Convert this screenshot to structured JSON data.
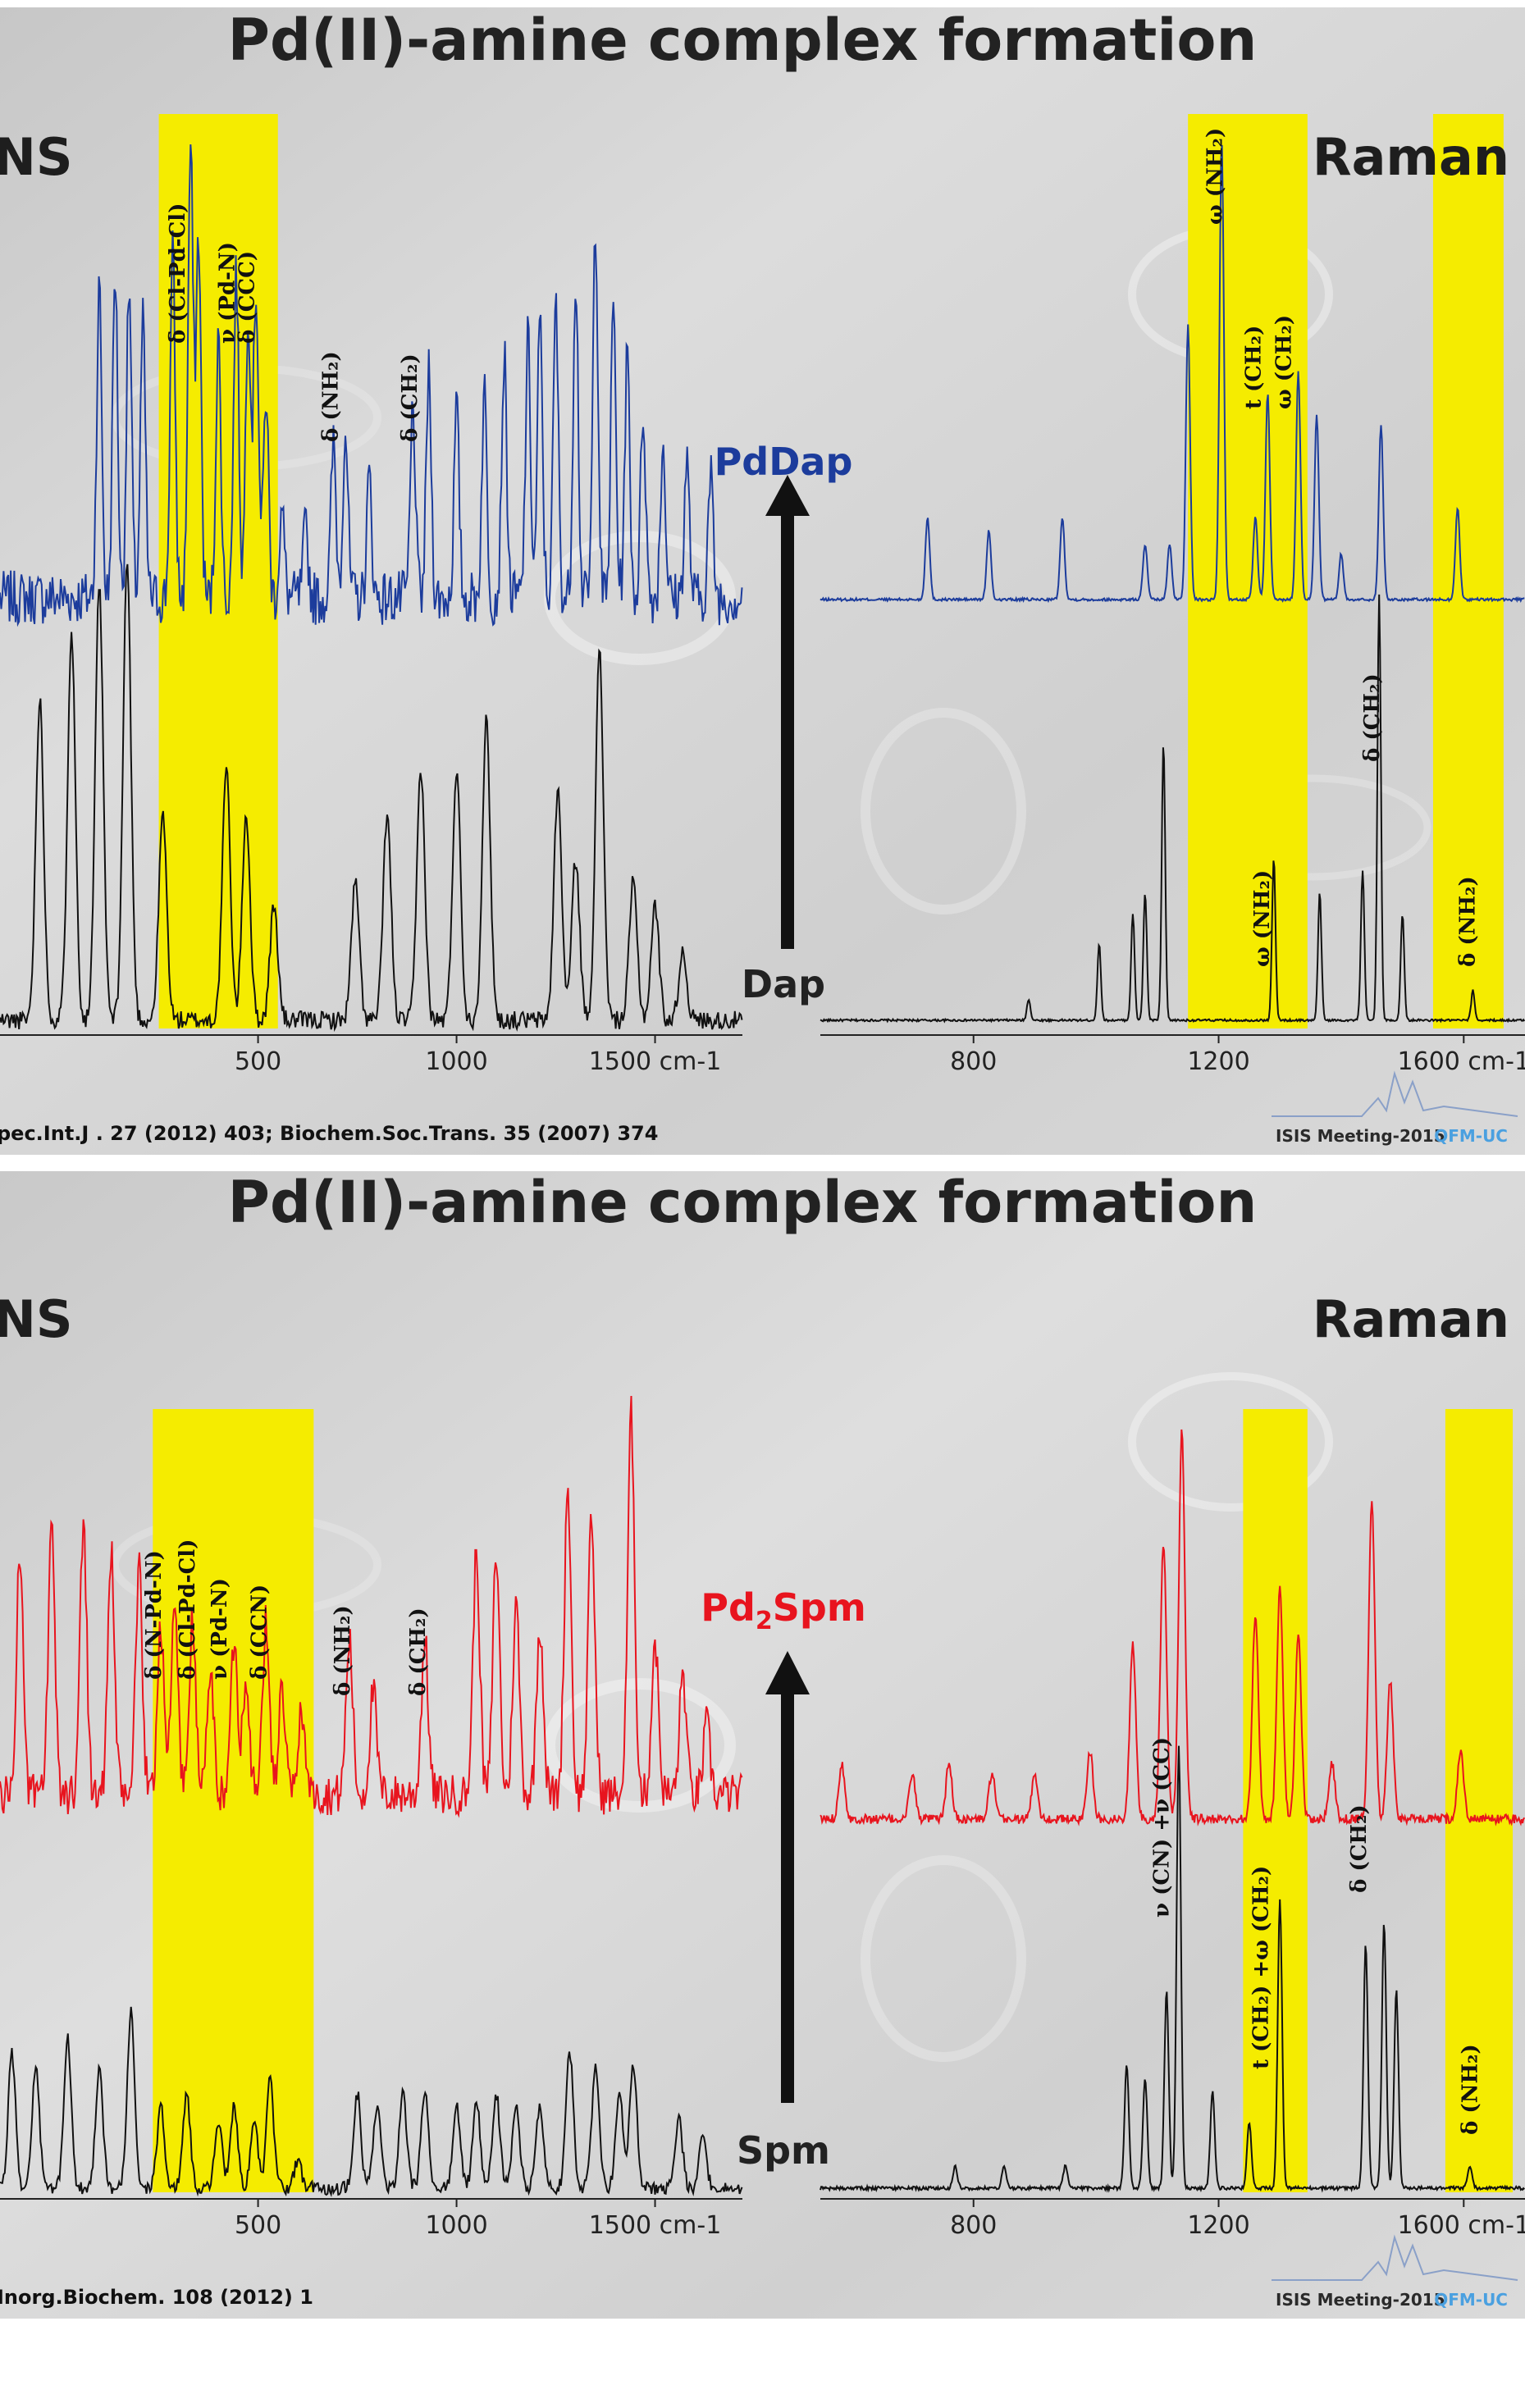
{
  "slides": [
    {
      "title": "Pd(II)-amine complex formation",
      "left_panel_label": "NS",
      "right_panel_label": "Raman",
      "arrow_top_label": "PdDap",
      "arrow_bottom_label": "Dap",
      "citation": "pec.Int.J . 27 (2012) 403; Biochem.Soc.Trans. 35 (2007) 374",
      "footer": {
        "meeting": "ISIS Meeting-2015",
        "org": "QFM-UC"
      },
      "colors": {
        "complex": "#1c3c9c",
        "ligand": "#111111",
        "highlight": "#f5ec00"
      },
      "left_highlights_cm1": [
        [
          250,
          550
        ]
      ],
      "right_highlights_cm1": [
        [
          1150,
          1345
        ],
        [
          1550,
          1665
        ]
      ],
      "left_annotations": [
        {
          "text": "δ (Cl-Pd-Cl)",
          "x_cm1": 315
        },
        {
          "text": "ν (Pd-N)",
          "x_cm1": 440
        },
        {
          "text": "δ (CCC)",
          "x_cm1": 490
        },
        {
          "text": "δ (NH₂)",
          "x_cm1": 700
        },
        {
          "text": "δ (CH₂)",
          "x_cm1": 900
        }
      ],
      "right_top_annotations": [
        {
          "text": "ω (NH₂)",
          "x_cm1": 1205
        },
        {
          "text": "t (CH₂)",
          "x_cm1": 1268
        },
        {
          "text": "ω (CH₂)",
          "x_cm1": 1318
        }
      ],
      "right_bottom_annotations": [
        {
          "text": "δ (CH₂)",
          "x_cm1": 1462
        },
        {
          "text": "ω (NH₂)",
          "x_cm1": 1282
        },
        {
          "text": "δ (NH₂)",
          "x_cm1": 1618
        }
      ]
    },
    {
      "title": "Pd(II)-amine complex formation",
      "left_panel_label": "NS",
      "right_panel_label": "Raman",
      "arrow_top_label_main": "Pd",
      "arrow_top_label_sub": "2",
      "arrow_top_label_rest": "Spm",
      "arrow_bottom_label": "Spm",
      "citation": "Inorg.Biochem. 108 (2012) 1",
      "footer": {
        "meeting": "ISIS Meeting-2015",
        "org": "QFM-UC"
      },
      "colors": {
        "complex": "#e8141e",
        "ligand": "#111111",
        "highlight": "#f5ec00"
      },
      "left_highlights_cm1": [
        [
          235,
          640
        ]
      ],
      "right_highlights_cm1": [
        [
          1240,
          1345
        ],
        [
          1570,
          1680
        ]
      ],
      "left_annotations": [
        {
          "text": "δ (N-Pd-N)",
          "x_cm1": 255
        },
        {
          "text": "δ (Cl-Pd-Cl)",
          "x_cm1": 340
        },
        {
          "text": "ν (Pd-N)",
          "x_cm1": 420
        },
        {
          "text": "δ (CCN)",
          "x_cm1": 520
        },
        {
          "text": "δ (NH₂)",
          "x_cm1": 730
        },
        {
          "text": "δ (CH₂)",
          "x_cm1": 920
        }
      ],
      "right_annotations": [
        {
          "text": "ν (CN) +ν (CC)",
          "x_cm1": 1118
        },
        {
          "text": "t (CH₂) +ω (CH₂)",
          "x_cm1": 1280
        },
        {
          "text": "δ (CH₂)",
          "x_cm1": 1440
        },
        {
          "text": "δ (NH₂)",
          "x_cm1": 1622
        }
      ]
    }
  ],
  "chart_data": [
    {
      "type": "line",
      "title": "Pd(II)-amine complex formation",
      "panel": "INS (left)",
      "xlabel": "cm-1",
      "x_ticks": [
        "500",
        "1000",
        "1500 cm-1"
      ],
      "xlim": [
        -150,
        1720
      ],
      "series": [
        {
          "name": "PdDap",
          "peaks": [
            [
              100,
              0.9
            ],
            [
              140,
              0.95
            ],
            [
              175,
              0.9
            ],
            [
              210,
              0.8
            ],
            [
              285,
              1.0
            ],
            [
              330,
              1.3
            ],
            [
              350,
              1.05
            ],
            [
              400,
              0.75
            ],
            [
              445,
              0.95
            ],
            [
              475,
              0.85
            ],
            [
              495,
              0.9
            ],
            [
              520,
              0.6
            ],
            [
              560,
              0.25
            ],
            [
              620,
              0.2
            ],
            [
              690,
              0.45
            ],
            [
              720,
              0.5
            ],
            [
              780,
              0.35
            ],
            [
              890,
              0.55
            ],
            [
              930,
              0.65
            ],
            [
              1000,
              0.55
            ],
            [
              1070,
              0.6
            ],
            [
              1120,
              0.7
            ],
            [
              1180,
              0.75
            ],
            [
              1210,
              0.8
            ],
            [
              1250,
              0.85
            ],
            [
              1300,
              0.95
            ],
            [
              1350,
              1.1
            ],
            [
              1395,
              0.85
            ],
            [
              1430,
              0.7
            ],
            [
              1470,
              0.55
            ],
            [
              1520,
              0.45
            ],
            [
              1580,
              0.4
            ],
            [
              1640,
              0.35
            ]
          ]
        },
        {
          "name": "Dap",
          "peaks": [
            [
              -50,
              0.7
            ],
            [
              30,
              0.85
            ],
            [
              100,
              0.95
            ],
            [
              170,
              1.0
            ],
            [
              260,
              0.45
            ],
            [
              420,
              0.55
            ],
            [
              470,
              0.45
            ],
            [
              540,
              0.25
            ],
            [
              745,
              0.3
            ],
            [
              825,
              0.45
            ],
            [
              910,
              0.55
            ],
            [
              1000,
              0.55
            ],
            [
              1075,
              0.65
            ],
            [
              1255,
              0.5
            ],
            [
              1300,
              0.35
            ],
            [
              1360,
              0.8
            ],
            [
              1445,
              0.3
            ],
            [
              1500,
              0.25
            ],
            [
              1570,
              0.15
            ]
          ]
        }
      ]
    },
    {
      "type": "line",
      "title": "Pd(II)-amine complex formation",
      "panel": "Raman (right)",
      "xlabel": "cm-1",
      "x_ticks": [
        "800",
        "1200",
        "1600 cm-1"
      ],
      "xlim": [
        550,
        1700
      ],
      "series": [
        {
          "name": "PdDap",
          "peaks": [
            [
              725,
              0.18
            ],
            [
              825,
              0.15
            ],
            [
              945,
              0.18
            ],
            [
              1080,
              0.12
            ],
            [
              1120,
              0.12
            ],
            [
              1150,
              0.6
            ],
            [
              1205,
              1.0
            ],
            [
              1260,
              0.18
            ],
            [
              1280,
              0.45
            ],
            [
              1330,
              0.5
            ],
            [
              1360,
              0.4
            ],
            [
              1400,
              0.1
            ],
            [
              1465,
              0.38
            ],
            [
              1590,
              0.2
            ]
          ]
        },
        {
          "name": "Dap",
          "peaks": [
            [
              890,
              0.05
            ],
            [
              1005,
              0.18
            ],
            [
              1060,
              0.25
            ],
            [
              1080,
              0.3
            ],
            [
              1110,
              0.65
            ],
            [
              1290,
              0.38
            ],
            [
              1365,
              0.3
            ],
            [
              1435,
              0.35
            ],
            [
              1462,
              1.0
            ],
            [
              1500,
              0.25
            ],
            [
              1615,
              0.07
            ]
          ]
        }
      ]
    },
    {
      "type": "line",
      "title": "Pd(II)-amine complex formation",
      "panel": "INS (left)",
      "xlabel": "cm-1",
      "x_ticks": [
        "500",
        "1000",
        "1500 cm-1"
      ],
      "xlim": [
        -150,
        1720
      ],
      "series": [
        {
          "name": "Pd2Spm",
          "peaks": [
            [
              -100,
              0.7
            ],
            [
              -20,
              0.75
            ],
            [
              60,
              0.8
            ],
            [
              130,
              0.7
            ],
            [
              200,
              0.65
            ],
            [
              255,
              0.5
            ],
            [
              290,
              0.55
            ],
            [
              335,
              0.5
            ],
            [
              380,
              0.35
            ],
            [
              440,
              0.45
            ],
            [
              470,
              0.35
            ],
            [
              520,
              0.5
            ],
            [
              560,
              0.3
            ],
            [
              610,
              0.25
            ],
            [
              730,
              0.45
            ],
            [
              790,
              0.3
            ],
            [
              920,
              0.45
            ],
            [
              1050,
              0.7
            ],
            [
              1100,
              0.7
            ],
            [
              1150,
              0.55
            ],
            [
              1210,
              0.5
            ],
            [
              1280,
              0.9
            ],
            [
              1340,
              0.8
            ],
            [
              1440,
              1.1
            ],
            [
              1500,
              0.45
            ],
            [
              1570,
              0.35
            ],
            [
              1630,
              0.2
            ]
          ]
        },
        {
          "name": "Spm",
          "peaks": [
            [
              -120,
              0.5
            ],
            [
              -60,
              0.45
            ],
            [
              20,
              0.55
            ],
            [
              100,
              0.45
            ],
            [
              180,
              0.65
            ],
            [
              255,
              0.3
            ],
            [
              320,
              0.35
            ],
            [
              400,
              0.25
            ],
            [
              440,
              0.3
            ],
            [
              490,
              0.25
            ],
            [
              530,
              0.4
            ],
            [
              600,
              0.1
            ],
            [
              750,
              0.35
            ],
            [
              800,
              0.3
            ],
            [
              865,
              0.35
            ],
            [
              920,
              0.35
            ],
            [
              1000,
              0.3
            ],
            [
              1050,
              0.32
            ],
            [
              1100,
              0.35
            ],
            [
              1150,
              0.3
            ],
            [
              1210,
              0.3
            ],
            [
              1285,
              0.5
            ],
            [
              1350,
              0.45
            ],
            [
              1410,
              0.35
            ],
            [
              1445,
              0.45
            ],
            [
              1560,
              0.25
            ],
            [
              1620,
              0.18
            ]
          ]
        }
      ]
    },
    {
      "type": "line",
      "title": "Pd(II)-amine complex formation",
      "panel": "Raman (right)",
      "xlabel": "cm-1",
      "x_ticks": [
        "800",
        "1200",
        "1600 cm-1"
      ],
      "xlim": [
        550,
        1700
      ],
      "series": [
        {
          "name": "Pd2Spm",
          "peaks": [
            [
              585,
              0.12
            ],
            [
              700,
              0.1
            ],
            [
              760,
              0.12
            ],
            [
              830,
              0.1
            ],
            [
              900,
              0.1
            ],
            [
              990,
              0.15
            ],
            [
              1060,
              0.38
            ],
            [
              1110,
              0.6
            ],
            [
              1140,
              0.85
            ],
            [
              1260,
              0.45
            ],
            [
              1300,
              0.5
            ],
            [
              1330,
              0.4
            ],
            [
              1385,
              0.12
            ],
            [
              1450,
              0.7
            ],
            [
              1480,
              0.3
            ],
            [
              1595,
              0.15
            ]
          ]
        },
        {
          "name": "Spm",
          "peaks": [
            [
              770,
              0.05
            ],
            [
              850,
              0.05
            ],
            [
              950,
              0.05
            ],
            [
              1050,
              0.28
            ],
            [
              1080,
              0.25
            ],
            [
              1115,
              0.45
            ],
            [
              1135,
              1.0
            ],
            [
              1190,
              0.22
            ],
            [
              1250,
              0.15
            ],
            [
              1300,
              0.65
            ],
            [
              1440,
              0.55
            ],
            [
              1470,
              0.6
            ],
            [
              1490,
              0.45
            ],
            [
              1610,
              0.05
            ]
          ]
        }
      ]
    }
  ]
}
